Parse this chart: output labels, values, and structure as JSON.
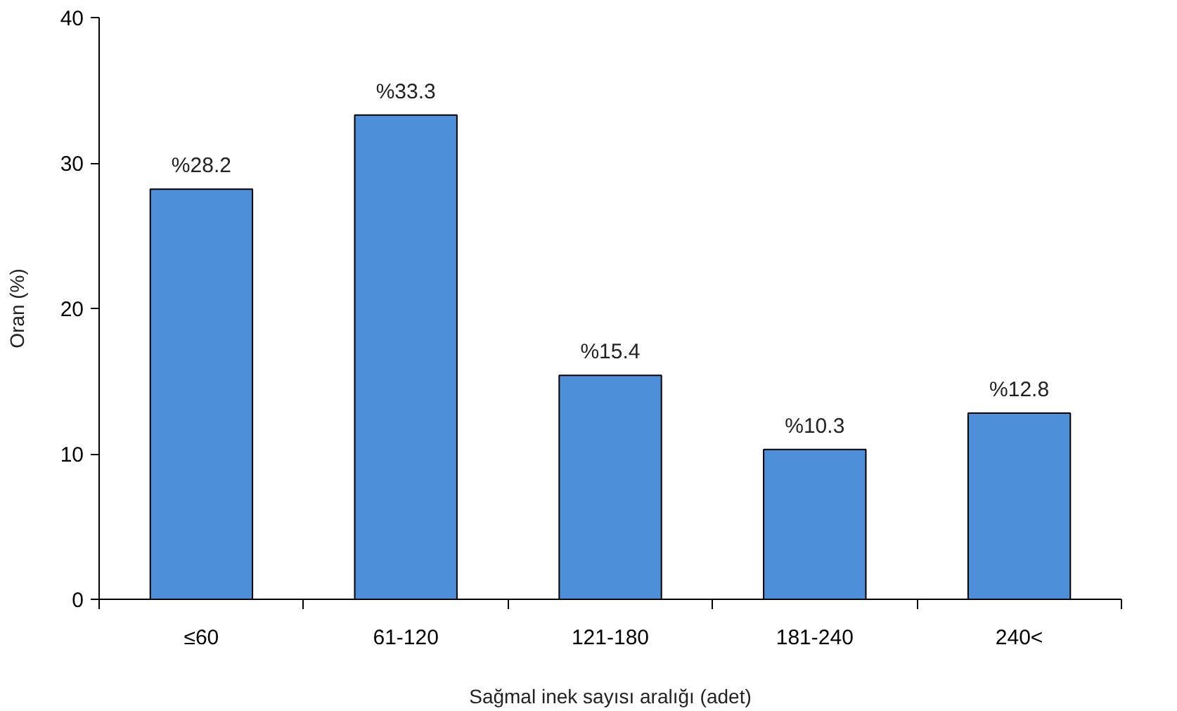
{
  "chart_data": {
    "type": "bar",
    "xlabel": "Sağmal inek sayısı aralığı (adet)",
    "ylabel": "Oran (%)",
    "categories": [
      "≤60",
      "61-120",
      "121-180",
      "181-240",
      "240<"
    ],
    "values": [
      28.2,
      33.3,
      15.4,
      10.3,
      12.8
    ],
    "value_labels": [
      "%28.2",
      "%33.3",
      "%15.4",
      "%10.3",
      "%12.8"
    ],
    "color": "#4d8fd8",
    "ylim": [
      0,
      40
    ],
    "yticks": [
      0,
      10,
      20,
      30,
      40
    ],
    "grid": false
  }
}
